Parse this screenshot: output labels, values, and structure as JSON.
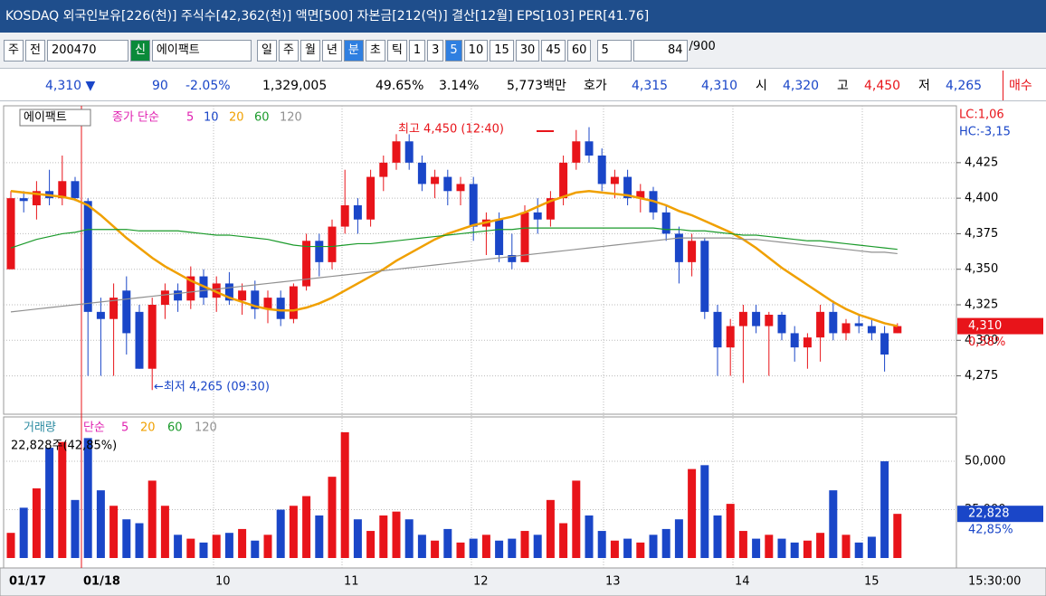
{
  "title_bar": {
    "text": "KOSDAQ 외국인보유[226(천)] 주식수[42,362(천)] 액면[500] 자본금[212(억)] 결산[12월] EPS[103] PER[41.76]"
  },
  "toolbar": {
    "items": [
      "주",
      "전"
    ],
    "code": "200470",
    "sin": "신",
    "name": "에이팩트",
    "periods": [
      "일",
      "주",
      "월",
      "년",
      "분",
      "초",
      "틱"
    ],
    "intervals": [
      "1",
      "3",
      "5",
      "10",
      "15",
      "30",
      "45",
      "60"
    ],
    "count": "5",
    "range": "84",
    "range_max": "/900"
  },
  "info": {
    "price": "4,310 ▼",
    "change": "90",
    "change_pct": "-2.05%",
    "volume": "1,329,005",
    "vol_ratio": "49.65%",
    "turnover": "3.14%",
    "amount": "5,773백만",
    "quote_label": "호가",
    "ask": "4,315",
    "bid": "4,310",
    "open_label": "시",
    "open": "4,320",
    "high_label": "고",
    "high": "4,450",
    "low_label": "저",
    "low": "4,265",
    "order": "매수"
  },
  "chart_data": [
    {
      "type": "candlestick",
      "title": "에이팩트",
      "legend_label": "종가 단순",
      "open": [
        4350,
        4400,
        4395,
        4405,
        4400,
        4412,
        4398,
        4320,
        4315,
        4335,
        4320,
        4280,
        4325,
        4335,
        4328,
        4345,
        4330,
        4340,
        4328,
        4335,
        4322,
        4330,
        4315,
        4338,
        4370,
        4355,
        4380,
        4395,
        4385,
        4415,
        4425,
        4440,
        4425,
        4410,
        4415,
        4405,
        4410,
        4380,
        4385,
        4360,
        4355,
        4390,
        4385,
        4400,
        4425,
        4440,
        4430,
        4410,
        4415,
        4400,
        4405,
        4390,
        4375,
        4355,
        4370,
        4320,
        4295,
        4310,
        4320,
        4310,
        4318,
        4305,
        4295,
        4302,
        4320,
        4305,
        4312,
        4310,
        4305,
        4305
      ],
      "high": [
        4405,
        4405,
        4412,
        4420,
        4430,
        4415,
        4400,
        4330,
        4340,
        4345,
        4325,
        4330,
        4340,
        4340,
        4352,
        4350,
        4345,
        4348,
        4340,
        4342,
        4335,
        4335,
        4340,
        4375,
        4375,
        4385,
        4420,
        4400,
        4420,
        4430,
        4445,
        4445,
        4430,
        4420,
        4420,
        4415,
        4415,
        4390,
        4390,
        4375,
        4395,
        4400,
        4405,
        4430,
        4448,
        4450,
        4435,
        4420,
        4420,
        4410,
        4408,
        4395,
        4380,
        4375,
        4372,
        4325,
        4315,
        4325,
        4325,
        4320,
        4320,
        4310,
        4305,
        4325,
        4328,
        4315,
        4318,
        4315,
        4310,
        4312
      ],
      "low": [
        4350,
        4390,
        4385,
        4395,
        4395,
        4398,
        4275,
        4275,
        4275,
        4290,
        4280,
        4265,
        4315,
        4320,
        4322,
        4325,
        4320,
        4325,
        4318,
        4315,
        4312,
        4310,
        4312,
        4335,
        4345,
        4350,
        4375,
        4375,
        4380,
        4405,
        4420,
        4420,
        4405,
        4400,
        4395,
        4395,
        4370,
        4360,
        4355,
        4350,
        4355,
        4375,
        4380,
        4395,
        4420,
        4425,
        4405,
        4400,
        4395,
        4390,
        4385,
        4370,
        4340,
        4345,
        4315,
        4275,
        4275,
        4270,
        4305,
        4275,
        4300,
        4285,
        4280,
        4285,
        4300,
        4300,
        4305,
        4300,
        4278,
        4305
      ],
      "close": [
        4400,
        4398,
        4405,
        4400,
        4412,
        4400,
        4320,
        4315,
        4330,
        4305,
        4280,
        4325,
        4335,
        4328,
        4345,
        4330,
        4340,
        4328,
        4335,
        4322,
        4330,
        4315,
        4338,
        4370,
        4355,
        4380,
        4395,
        4385,
        4415,
        4425,
        4440,
        4425,
        4410,
        4415,
        4405,
        4410,
        4380,
        4385,
        4360,
        4355,
        4390,
        4385,
        4400,
        4425,
        4440,
        4430,
        4410,
        4415,
        4400,
        4405,
        4390,
        4375,
        4355,
        4370,
        4320,
        4295,
        4310,
        4320,
        4310,
        4318,
        4305,
        4295,
        4302,
        4320,
        4305,
        4312,
        4310,
        4305,
        4290,
        4310
      ],
      "series": [
        {
          "name": "5",
          "color": "#e020b0"
        },
        {
          "name": "10",
          "color": "#1a46c8"
        },
        {
          "name": "20",
          "color": "#f0a000",
          "values": [
            4405,
            4404,
            4403,
            4402,
            4401,
            4399,
            4395,
            4388,
            4380,
            4372,
            4365,
            4358,
            4352,
            4347,
            4342,
            4338,
            4334,
            4330,
            4327,
            4324,
            4322,
            4321,
            4321,
            4323,
            4326,
            4330,
            4335,
            4340,
            4345,
            4350,
            4356,
            4361,
            4366,
            4371,
            4375,
            4378,
            4381,
            4383,
            4385,
            4387,
            4390,
            4394,
            4398,
            4401,
            4404,
            4405,
            4404,
            4403,
            4402,
            4400,
            4398,
            4395,
            4391,
            4388,
            4384,
            4380,
            4376,
            4371,
            4365,
            4358,
            4351,
            4345,
            4339,
            4333,
            4327,
            4322,
            4318,
            4315,
            4312,
            4310
          ]
        },
        {
          "name": "60",
          "color": "#1a9a2a",
          "values": [
            4365,
            4368,
            4371,
            4373,
            4375,
            4376,
            4378,
            4378,
            4378,
            4378,
            4377,
            4377,
            4377,
            4377,
            4376,
            4375,
            4374,
            4374,
            4373,
            4372,
            4371,
            4369,
            4367,
            4366,
            4366,
            4366,
            4367,
            4368,
            4368,
            4369,
            4370,
            4371,
            4372,
            4373,
            4374,
            4375,
            4376,
            4377,
            4378,
            4378,
            4379,
            4379,
            4379,
            4379,
            4379,
            4379,
            4379,
            4379,
            4379,
            4379,
            4379,
            4378,
            4378,
            4377,
            4377,
            4376,
            4375,
            4374,
            4374,
            4373,
            4372,
            4371,
            4370,
            4370,
            4369,
            4368,
            4367,
            4366,
            4365,
            4364
          ]
        },
        {
          "name": "120",
          "color": "#909090",
          "values": [
            4320,
            4321,
            4322,
            4323,
            4324,
            4325,
            4326,
            4327,
            4328,
            4329,
            4330,
            4331,
            4332,
            4333,
            4334,
            4335,
            4336,
            4337,
            4338,
            4339,
            4340,
            4341,
            4342,
            4343,
            4344,
            4345,
            4346,
            4347,
            4348,
            4349,
            4350,
            4351,
            4352,
            4353,
            4354,
            4355,
            4356,
            4357,
            4358,
            4359,
            4360,
            4361,
            4362,
            4363,
            4364,
            4365,
            4366,
            4367,
            4368,
            4369,
            4370,
            4371,
            4372,
            4372,
            4372,
            4372,
            4372,
            4371,
            4371,
            4370,
            4369,
            4368,
            4367,
            4366,
            4365,
            4364,
            4363,
            4362,
            4362,
            4361
          ]
        }
      ],
      "ylim": [
        4248,
        4465
      ],
      "yticks": [
        {
          "value": 4275,
          "label": "4,275"
        },
        {
          "value": 4300,
          "label": "4,300"
        },
        {
          "value": 4325,
          "label": "4,325"
        },
        {
          "value": 4350,
          "label": "4,350"
        },
        {
          "value": 4375,
          "label": "4,375"
        },
        {
          "value": 4400,
          "label": "4,400"
        },
        {
          "value": 4425,
          "label": "4,425"
        }
      ],
      "annotations": {
        "high": "최고 4,450 (12:40)",
        "low": "←최저 4,265 (09:30)",
        "lc": "LC:1,06",
        "hc": "HC:-3,15",
        "last": "4,310",
        "last_pct": "0,58%"
      },
      "x_labels": [
        "01/17",
        "01/18",
        "10",
        "11",
        "12",
        "13",
        "14",
        "15"
      ],
      "time": "15:30:00"
    },
    {
      "type": "bar",
      "title": "거래량",
      "legend_label": "단순",
      "legend": [
        {
          "name": "5",
          "color": "#e020b0"
        },
        {
          "name": "20",
          "color": "#f0a000"
        },
        {
          "name": "60",
          "color": "#1a9a2a"
        },
        {
          "name": "120",
          "color": "#909090"
        }
      ],
      "summary": "22,828주(42,85%)",
      "values": [
        13000,
        26000,
        36000,
        57000,
        60000,
        30000,
        62000,
        35000,
        27000,
        20000,
        18000,
        40000,
        27000,
        12000,
        10000,
        8000,
        12000,
        13000,
        15000,
        9000,
        12000,
        25000,
        27000,
        32000,
        22000,
        42000,
        65000,
        20000,
        14000,
        22000,
        24000,
        20000,
        12000,
        9000,
        15000,
        8000,
        10000,
        12000,
        9000,
        10000,
        14000,
        12000,
        30000,
        18000,
        40000,
        22000,
        14000,
        9000,
        10000,
        8000,
        12000,
        15000,
        20000,
        46000,
        48000,
        22000,
        28000,
        14000,
        10000,
        12000,
        10000,
        8000,
        9000,
        13000,
        35000,
        12000,
        8000,
        11000,
        50000,
        22828
      ],
      "ylim": [
        0,
        72000
      ],
      "yticks": [
        {
          "value": 25000,
          "label": "25,000"
        },
        {
          "value": 50000,
          "label": "50,000"
        }
      ],
      "last": "22,828",
      "last_pct": "42,85%"
    }
  ]
}
